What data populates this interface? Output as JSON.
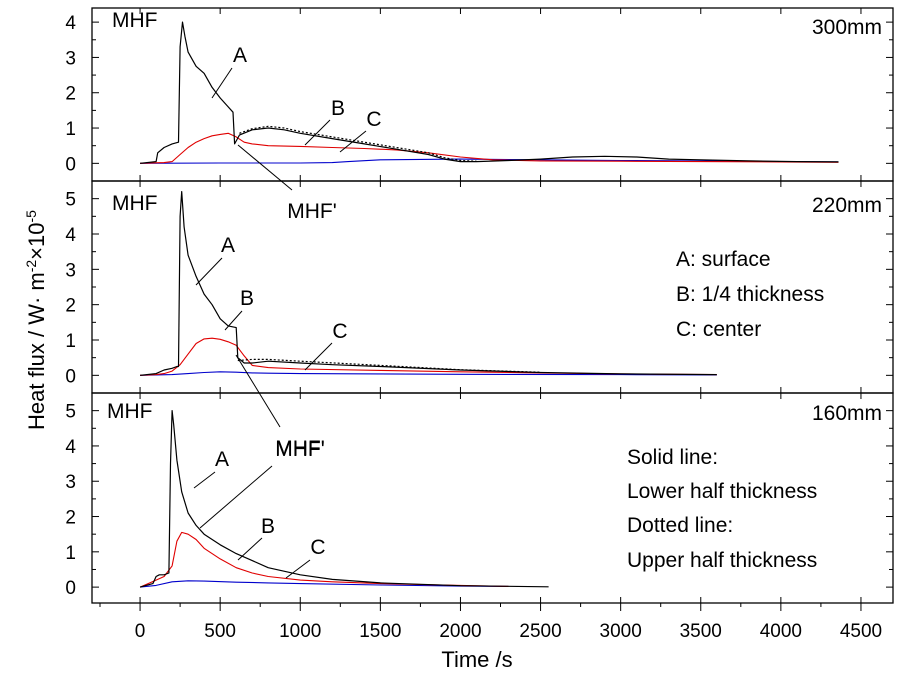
{
  "chart_data": {
    "type": "line",
    "xlabel": "Time /s",
    "ylabel": "Heat flux / W· m",
    "ylabel_sup1": "-2",
    "ylabel_times": "×10",
    "ylabel_sup2": "-5",
    "x_ticks": [
      "0",
      "500",
      "1000",
      "1500",
      "2000",
      "2500",
      "3000",
      "3500",
      "4000",
      "4500"
    ],
    "xlim": [
      -300,
      4700
    ],
    "grid": false,
    "colors": {
      "A": "#000000",
      "B": "#e00000",
      "C": "#0000cc"
    },
    "panels": [
      {
        "thickness_label": "300mm",
        "ylim": [
          -0.5,
          4.4
        ],
        "y_ticks": [
          "0",
          "1",
          "2",
          "3",
          "4"
        ],
        "series": [
          {
            "key": "A",
            "style": "solid",
            "x": [
              0,
              100,
              110,
              150,
              200,
              240,
              250,
              265,
              280,
              300,
              350,
              400,
              450,
              500,
              550,
              580,
              590,
              620,
              700,
              800,
              900,
              1000,
              1200,
              1400,
              1600,
              1800,
              1900,
              2000,
              2100,
              2300,
              2500,
              2700,
              2900,
              3100,
              3300,
              3500,
              3800,
              4100,
              4360
            ],
            "y": [
              0,
              0.05,
              0.3,
              0.45,
              0.55,
              0.6,
              3.3,
              4.0,
              3.6,
              3.15,
              2.75,
              2.55,
              2.15,
              1.85,
              1.6,
              1.45,
              0.55,
              0.8,
              0.95,
              1.0,
              0.95,
              0.85,
              0.7,
              0.55,
              0.4,
              0.25,
              0.12,
              0.05,
              0.05,
              0.08,
              0.12,
              0.18,
              0.2,
              0.18,
              0.12,
              0.1,
              0.07,
              0.05,
              0.04
            ]
          },
          {
            "key": "A",
            "style": "dotted",
            "x": [
              620,
              700,
              800,
              900,
              1000,
              1200,
              1400,
              1600,
              1800,
              1900,
              2000,
              2100
            ],
            "y": [
              0.85,
              0.98,
              1.05,
              1.0,
              0.9,
              0.75,
              0.6,
              0.45,
              0.3,
              0.16,
              0.08,
              0.06
            ]
          },
          {
            "key": "B",
            "style": "solid",
            "x": [
              0,
              150,
              200,
              250,
              300,
              350,
              400,
              450,
              500,
              550,
              600,
              650,
              700,
              800,
              1000,
              1200,
              1400,
              1600,
              1800,
              2000,
              2200,
              2500,
              3000,
              3500,
              4000,
              4360
            ],
            "y": [
              0,
              0.02,
              0.05,
              0.25,
              0.45,
              0.6,
              0.7,
              0.78,
              0.82,
              0.85,
              0.75,
              0.6,
              0.55,
              0.5,
              0.48,
              0.45,
              0.42,
              0.38,
              0.3,
              0.18,
              0.1,
              0.07,
              0.06,
              0.05,
              0.04,
              0.03
            ]
          },
          {
            "key": "C",
            "style": "solid",
            "x": [
              0,
              500,
              1000,
              1200,
              1300,
              1500,
              2000,
              2500,
              3000,
              3500,
              4000,
              4360
            ],
            "y": [
              0,
              0.01,
              0.01,
              0.02,
              0.05,
              0.1,
              0.12,
              0.1,
              0.08,
              0.07,
              0.05,
              0.04
            ]
          }
        ],
        "annotations": [
          {
            "text": "MHF"
          },
          {
            "text": "A"
          },
          {
            "text": "B"
          },
          {
            "text": "C"
          },
          {
            "text": "MHF'"
          }
        ]
      },
      {
        "thickness_label": "220mm",
        "ylim": [
          -0.5,
          5.5
        ],
        "y_ticks": [
          "0",
          "1",
          "2",
          "3",
          "4",
          "5"
        ],
        "series": [
          {
            "key": "A",
            "style": "solid",
            "x": [
              0,
              100,
              150,
              200,
              230,
              240,
              250,
              260,
              275,
              300,
              350,
              400,
              450,
              500,
              550,
              600,
              610,
              650,
              700,
              800,
              1000,
              1200,
              1500,
              2000,
              2500,
              3000,
              3600
            ],
            "y": [
              0,
              0.05,
              0.15,
              0.2,
              0.25,
              0.25,
              4.5,
              5.2,
              4.2,
              3.4,
              2.8,
              2.3,
              2.0,
              1.6,
              1.4,
              1.35,
              0.5,
              0.35,
              0.35,
              0.4,
              0.35,
              0.3,
              0.25,
              0.15,
              0.08,
              0.04,
              0.02
            ]
          },
          {
            "key": "A",
            "style": "dotted",
            "x": [
              610,
              700,
              800,
              1000,
              1500,
              2000,
              2500
            ],
            "y": [
              0.42,
              0.45,
              0.45,
              0.4,
              0.28,
              0.16,
              0.09
            ]
          },
          {
            "key": "B",
            "style": "solid",
            "x": [
              0,
              100,
              150,
              200,
              250,
              300,
              350,
              400,
              450,
              500,
              550,
              600,
              650,
              700,
              800,
              1000,
              1500,
              2000,
              2500,
              3000,
              3600
            ],
            "y": [
              0,
              0.02,
              0.05,
              0.12,
              0.3,
              0.6,
              0.9,
              1.03,
              1.05,
              1.02,
              0.95,
              0.85,
              0.55,
              0.28,
              0.22,
              0.18,
              0.14,
              0.1,
              0.07,
              0.04,
              0.02
            ]
          },
          {
            "key": "C",
            "style": "solid",
            "x": [
              0,
              200,
              300,
              400,
              500,
              600,
              700,
              800,
              1000,
              1500,
              2000,
              3000,
              3600
            ],
            "y": [
              0,
              0.02,
              0.05,
              0.08,
              0.1,
              0.09,
              0.07,
              0.06,
              0.05,
              0.04,
              0.03,
              0.02,
              0.01
            ]
          }
        ],
        "annotations": [
          {
            "text": "MHF"
          },
          {
            "text": "A"
          },
          {
            "text": "B"
          },
          {
            "text": "C"
          },
          {
            "text": "MHF'"
          }
        ],
        "legend": [
          "A: surface",
          "B: 1/4 thickness",
          "C: center"
        ]
      },
      {
        "thickness_label": "160mm",
        "ylim": [
          -0.45,
          5.5
        ],
        "y_ticks": [
          "0",
          "1",
          "2",
          "3",
          "4",
          "5"
        ],
        "series": [
          {
            "key": "A",
            "style": "solid",
            "x": [
              0,
              80,
              100,
              120,
              150,
              180,
              190,
              200,
              210,
              230,
              260,
              300,
              350,
              400,
              500,
              600,
              700,
              800,
              1000,
              1200,
              1500,
              2000,
              2550
            ],
            "y": [
              0,
              0.1,
              0.3,
              0.35,
              0.35,
              0.4,
              3.5,
              5.0,
              4.6,
              3.6,
              2.7,
              2.1,
              1.75,
              1.5,
              1.2,
              0.95,
              0.75,
              0.55,
              0.35,
              0.22,
              0.12,
              0.04,
              0.01
            ]
          },
          {
            "key": "B",
            "style": "solid",
            "x": [
              0,
              100,
              150,
              200,
              230,
              260,
              300,
              350,
              400,
              500,
              600,
              700,
              800,
              1000,
              1200,
              1500,
              2000,
              2300
            ],
            "y": [
              0,
              0.2,
              0.3,
              0.6,
              1.3,
              1.55,
              1.5,
              1.35,
              1.1,
              0.8,
              0.55,
              0.4,
              0.3,
              0.2,
              0.15,
              0.1,
              0.05,
              0.02
            ]
          },
          {
            "key": "C",
            "style": "solid",
            "x": [
              0,
              100,
              200,
              300,
              400,
              600,
              800,
              1000,
              1500,
              2000,
              2300
            ],
            "y": [
              0,
              0.05,
              0.15,
              0.18,
              0.17,
              0.14,
              0.12,
              0.1,
              0.06,
              0.03,
              0.02
            ]
          }
        ],
        "annotations": [
          {
            "text": "MHF"
          },
          {
            "text": "A"
          },
          {
            "text": "MHF'"
          },
          {
            "text": "B"
          },
          {
            "text": "C"
          }
        ],
        "legend": [
          "Solid line:",
          "Lower half thickness",
          "Dotted line:",
          "Upper half thickness"
        ]
      }
    ]
  }
}
